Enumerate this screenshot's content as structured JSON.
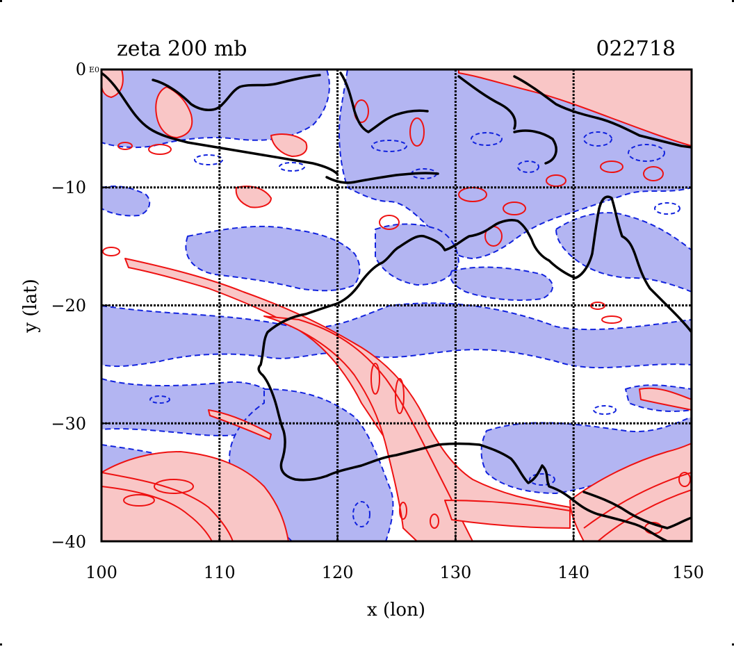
{
  "title": "zeta 200 mb",
  "timestamp": "022718",
  "axes": {
    "x": {
      "label": "x (lon)",
      "min": 100,
      "max": 150,
      "ticks": [
        "100",
        "110",
        "120",
        "130",
        "140",
        "150"
      ]
    },
    "y": {
      "label": "y (lat)",
      "min": -40,
      "max": 0,
      "ticks": [
        "0",
        "−10",
        "−20",
        "−30",
        "−40"
      ]
    },
    "corner_tag": "E0"
  },
  "grid": true,
  "colors": {
    "positive_fill": "#f9c6c6",
    "negative_fill": "#b3b5f2",
    "positive_line": "#ee1111",
    "negative_line": "#1122dd",
    "coastline": "#000000",
    "gridline": "#000000"
  },
  "layers": {
    "negative_fill": "negative vorticity regions (shaded blue, dashed blue contours)",
    "positive_fill": "positive vorticity regions (shaded pink, solid red contours)",
    "coastline": "Australia / Indonesia coastline"
  }
}
